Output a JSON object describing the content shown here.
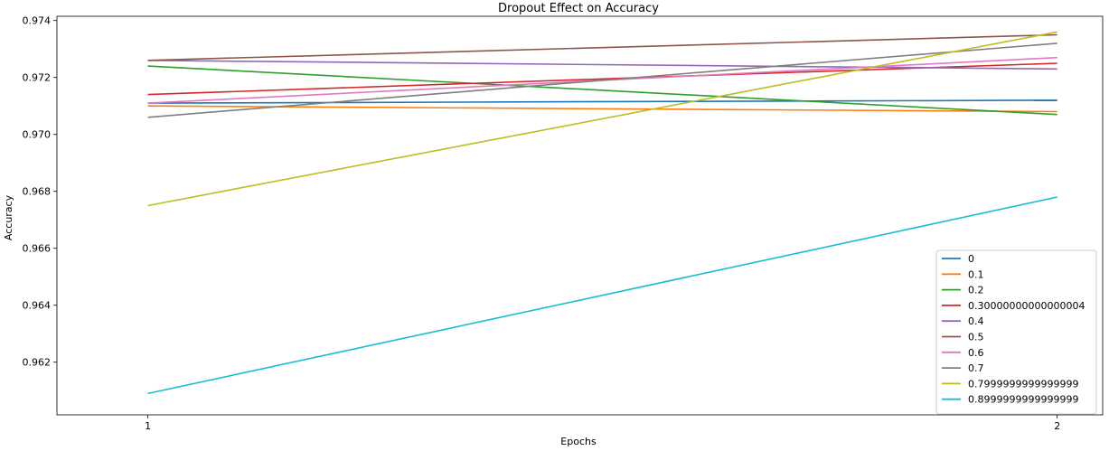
{
  "chart_data": {
    "type": "line",
    "title": "Dropout Effect on Accuracy",
    "xlabel": "Epochs",
    "ylabel": "Accuracy",
    "x": [
      1,
      2
    ],
    "xlim": [
      0.9,
      2.05
    ],
    "ylim": [
      0.96015,
      0.97415
    ],
    "xticks": [
      "1",
      "2"
    ],
    "yticks": [
      "0.962",
      "0.964",
      "0.966",
      "0.968",
      "0.970",
      "0.972",
      "0.974"
    ],
    "grid": false,
    "legend_position": "lower-right",
    "series": [
      {
        "name": "0",
        "color": "#1f77b4",
        "values": [
          0.9711,
          0.9712
        ]
      },
      {
        "name": "0.1",
        "color": "#ff7f0e",
        "values": [
          0.971,
          0.9708
        ]
      },
      {
        "name": "0.2",
        "color": "#2ca02c",
        "values": [
          0.9724,
          0.9707
        ]
      },
      {
        "name": "0.30000000000000004",
        "color": "#d62728",
        "values": [
          0.9714,
          0.9725
        ]
      },
      {
        "name": "0.4",
        "color": "#9467bd",
        "values": [
          0.9726,
          0.9723
        ]
      },
      {
        "name": "0.5",
        "color": "#8c564b",
        "values": [
          0.9726,
          0.9735
        ]
      },
      {
        "name": "0.6",
        "color": "#e377c2",
        "values": [
          0.9711,
          0.9727
        ]
      },
      {
        "name": "0.7",
        "color": "#7f7f7f",
        "values": [
          0.9706,
          0.9732
        ]
      },
      {
        "name": "0.7999999999999999",
        "color": "#bcbd22",
        "values": [
          0.9675,
          0.9736
        ]
      },
      {
        "name": "0.8999999999999999",
        "color": "#17becf",
        "values": [
          0.9609,
          0.9678
        ]
      }
    ]
  }
}
